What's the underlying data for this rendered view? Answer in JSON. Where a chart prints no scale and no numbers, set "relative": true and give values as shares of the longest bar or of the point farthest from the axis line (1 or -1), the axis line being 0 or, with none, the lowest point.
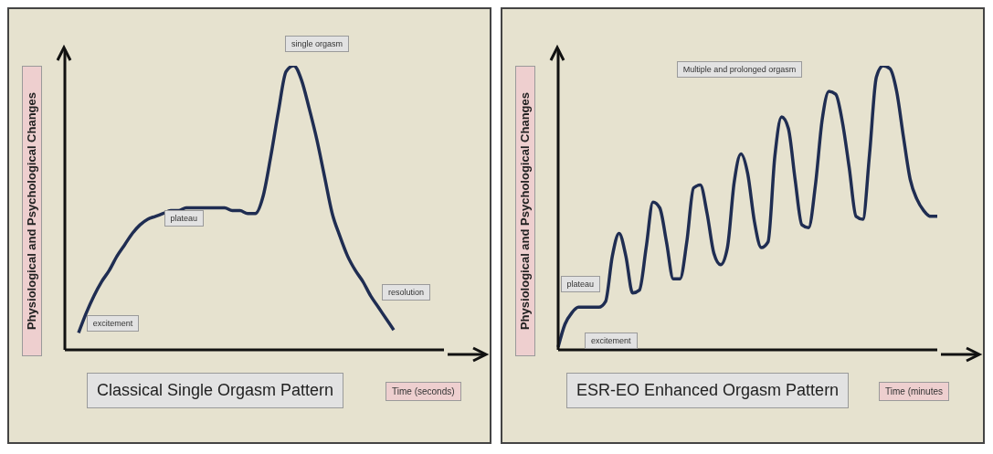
{
  "chart_data": [
    {
      "type": "line",
      "title": "Classical Single Orgasm Pattern",
      "xlabel": "Time (seconds)",
      "ylabel": "Physiological and Psychological Changes",
      "relative": true,
      "tick_labels": false,
      "grid": false,
      "legend": false,
      "marker": "none",
      "line_style": "solid",
      "annotations": [
        "excitement",
        "plateau",
        "single orgasm",
        "resolution"
      ],
      "categories": [
        null,
        null,
        null,
        null,
        null,
        null,
        null,
        null,
        null,
        null,
        null,
        null,
        null,
        null,
        null,
        null,
        null,
        null,
        null,
        null,
        null,
        null,
        null,
        null,
        null,
        null,
        null,
        null,
        null,
        null,
        null,
        null,
        null,
        null,
        null,
        null,
        null,
        null,
        null,
        null,
        null,
        null
      ],
      "series": [
        {
          "color": "#1f2d52",
          "values": [
            0.06,
            0.13,
            0.19,
            0.24,
            0.28,
            0.33,
            0.37,
            0.41,
            0.44,
            0.46,
            0.47,
            0.48,
            0.49,
            0.49,
            0.5,
            0.5,
            0.5,
            0.5,
            0.5,
            0.5,
            0.49,
            0.49,
            0.48,
            0.48,
            0.54,
            0.68,
            0.84,
            0.98,
            1.0,
            0.95,
            0.85,
            0.74,
            0.61,
            0.48,
            0.4,
            0.33,
            0.28,
            0.24,
            0.19,
            0.15,
            0.11,
            0.07
          ]
        }
      ]
    },
    {
      "type": "line",
      "title": "ESR-EO Enhanced Orgasm Pattern",
      "xlabel": "Time (minutes",
      "ylabel": "Physiological and Psychological Changes",
      "relative": true,
      "tick_labels": false,
      "grid": false,
      "legend": false,
      "marker": "none",
      "line_style": "solid",
      "annotations": [
        "plateau",
        "excitement",
        "Multiple and  prolonged orgasm"
      ],
      "categories": [
        null,
        null,
        null,
        null,
        null,
        null,
        null,
        null,
        null,
        null,
        null,
        null,
        null,
        null,
        null,
        null,
        null,
        null,
        null,
        null,
        null,
        null,
        null,
        null,
        null,
        null,
        null,
        null,
        null,
        null,
        null,
        null,
        null,
        null,
        null,
        null,
        null,
        null,
        null,
        null,
        null,
        null,
        null,
        null,
        null,
        null,
        null,
        null,
        null,
        null,
        null,
        null,
        null,
        null,
        null,
        null,
        null
      ],
      "series": [
        {
          "color": "#1f2d52",
          "values": [
            0.01,
            0.09,
            0.13,
            0.15,
            0.15,
            0.15,
            0.15,
            0.17,
            0.33,
            0.41,
            0.33,
            0.2,
            0.21,
            0.36,
            0.52,
            0.5,
            0.38,
            0.25,
            0.25,
            0.38,
            0.57,
            0.58,
            0.48,
            0.34,
            0.3,
            0.36,
            0.59,
            0.69,
            0.62,
            0.45,
            0.36,
            0.38,
            0.68,
            0.82,
            0.78,
            0.6,
            0.44,
            0.43,
            0.58,
            0.81,
            0.91,
            0.9,
            0.8,
            0.64,
            0.47,
            0.46,
            0.69,
            0.96,
            1.0,
            0.99,
            0.91,
            0.75,
            0.6,
            0.53,
            0.49,
            0.47,
            0.47
          ]
        }
      ]
    }
  ]
}
